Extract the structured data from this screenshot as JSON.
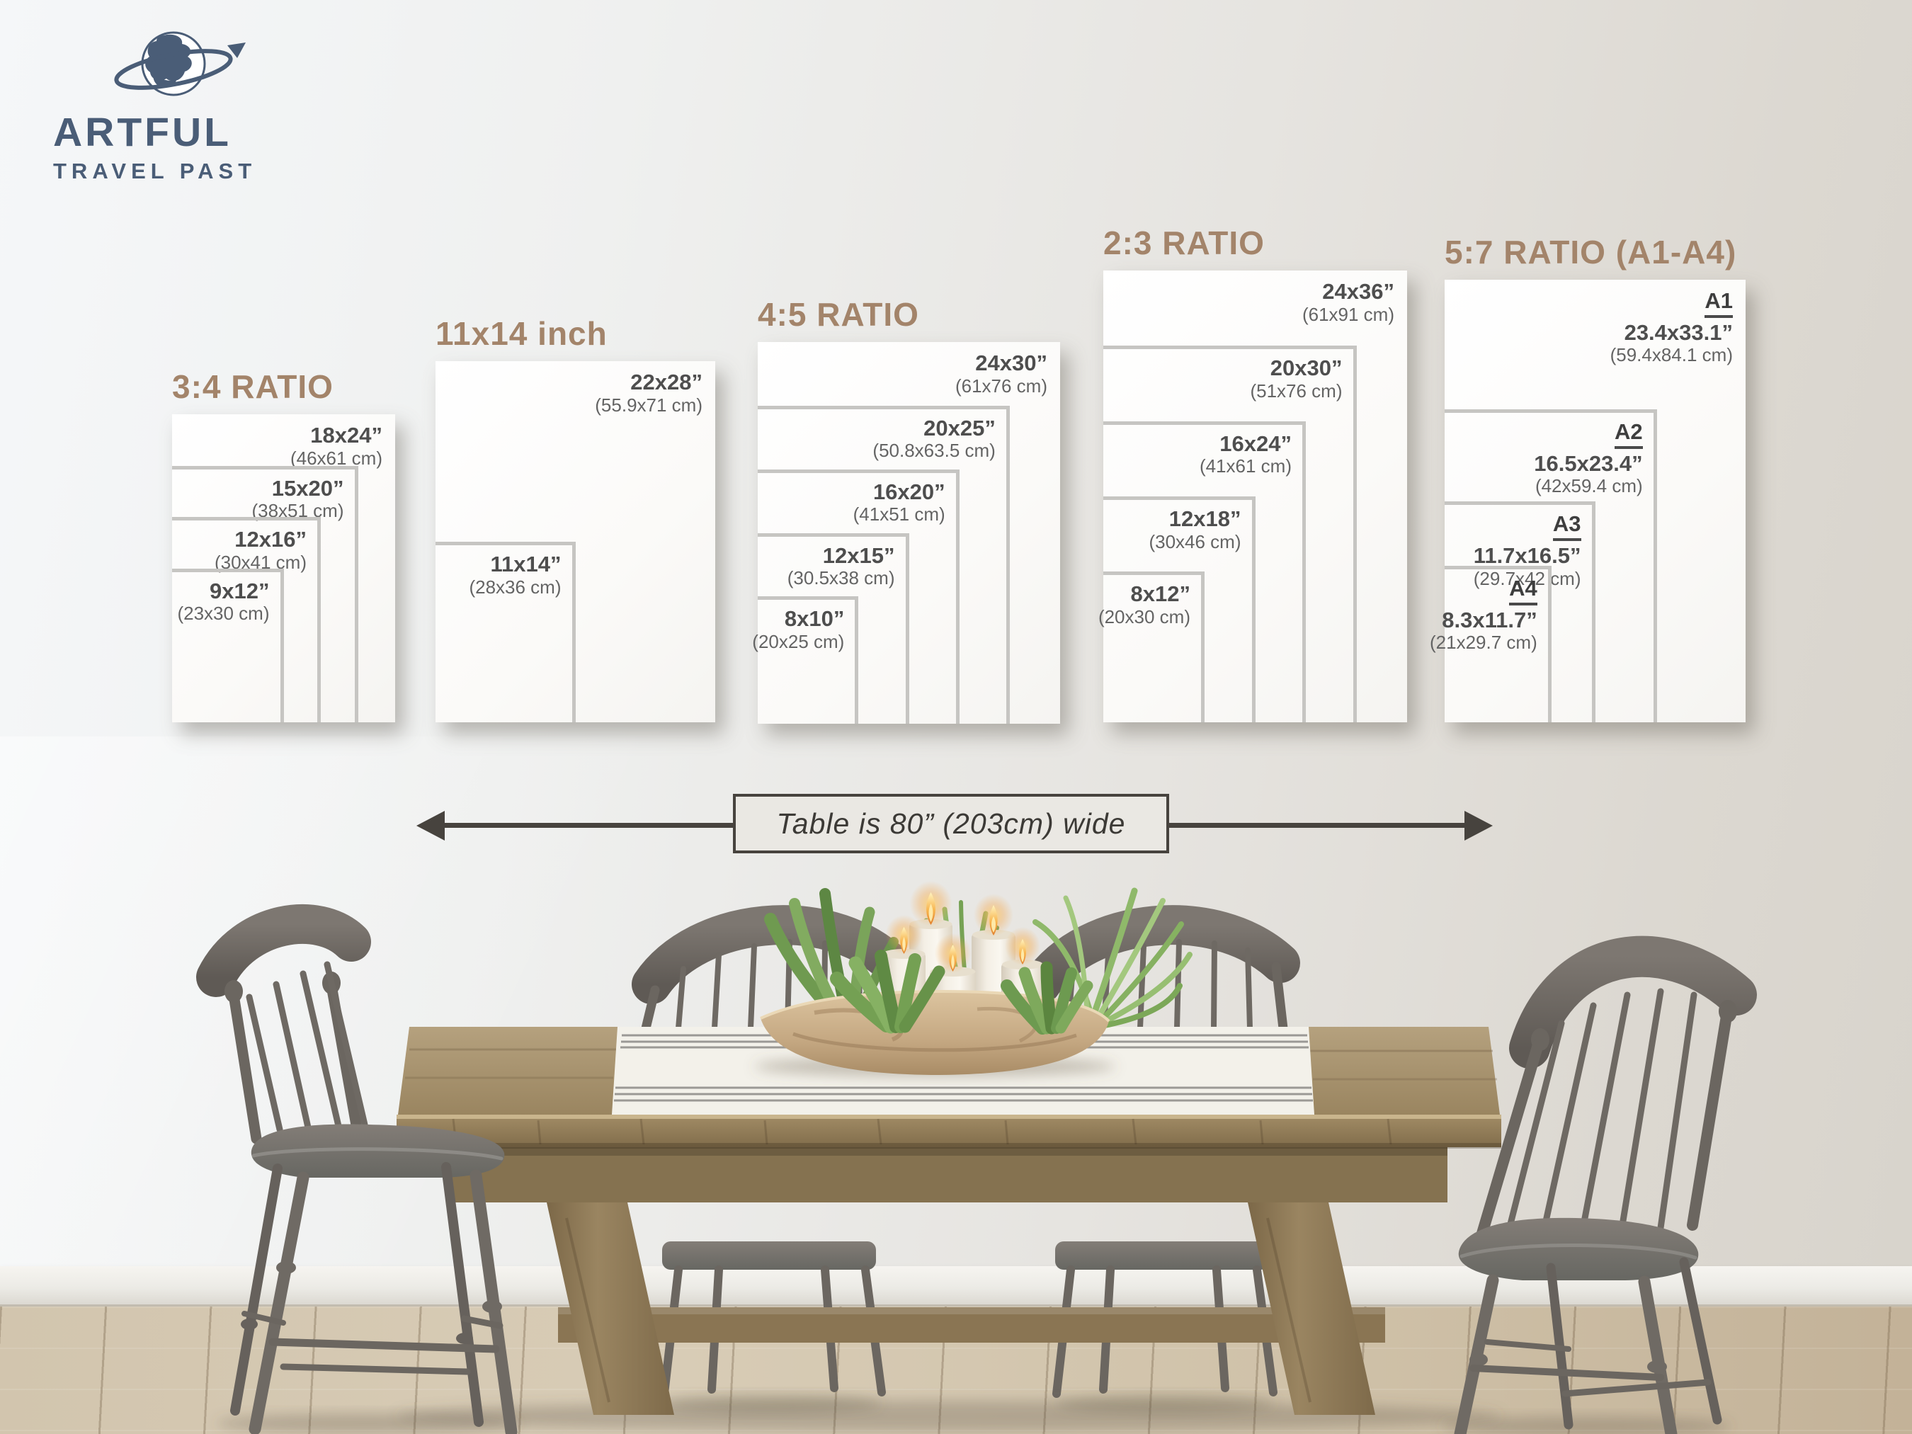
{
  "brand": {
    "line1": "ARTFUL",
    "line2": "TRAVEL PAST",
    "logo_icon": "globe-orbit-icon"
  },
  "panels": [
    {
      "title": "3:4 RATIO",
      "sizes": [
        {
          "inches": "18x24”",
          "cm": "(46x61 cm)",
          "w": 18,
          "h": 24
        },
        {
          "inches": "15x20”",
          "cm": "(38x51 cm)",
          "w": 15,
          "h": 20
        },
        {
          "inches": "12x16”",
          "cm": "(30x41 cm)",
          "w": 12,
          "h": 16
        },
        {
          "inches": "9x12”",
          "cm": "(23x30 cm)",
          "w": 9,
          "h": 12
        }
      ]
    },
    {
      "title": "11x14 inch",
      "sizes": [
        {
          "inches": "22x28”",
          "cm": "(55.9x71 cm)",
          "w": 22,
          "h": 28
        },
        {
          "inches": "11x14”",
          "cm": "(28x36 cm)",
          "w": 11,
          "h": 14
        }
      ]
    },
    {
      "title": "4:5 RATIO",
      "sizes": [
        {
          "inches": "24x30”",
          "cm": "(61x76 cm)",
          "w": 24,
          "h": 30
        },
        {
          "inches": "20x25”",
          "cm": "(50.8x63.5 cm)",
          "w": 20,
          "h": 25
        },
        {
          "inches": "16x20”",
          "cm": "(41x51 cm)",
          "w": 16,
          "h": 20
        },
        {
          "inches": "12x15”",
          "cm": "(30.5x38 cm)",
          "w": 12,
          "h": 15
        },
        {
          "inches": "8x10”",
          "cm": "(20x25 cm)",
          "w": 8,
          "h": 10
        }
      ]
    },
    {
      "title": "2:3 RATIO",
      "sizes": [
        {
          "inches": "24x36”",
          "cm": "(61x91 cm)",
          "w": 24,
          "h": 36
        },
        {
          "inches": "20x30”",
          "cm": "(51x76 cm)",
          "w": 20,
          "h": 30
        },
        {
          "inches": "16x24”",
          "cm": "(41x61 cm)",
          "w": 16,
          "h": 24
        },
        {
          "inches": "12x18”",
          "cm": "(30x46 cm)",
          "w": 12,
          "h": 18
        },
        {
          "inches": "8x12”",
          "cm": "(20x30 cm)",
          "w": 8,
          "h": 12
        }
      ]
    },
    {
      "title": "5:7 RATIO (A1-A4)",
      "sizes": [
        {
          "name": "A1",
          "inches": "23.4x33.1”",
          "cm": "(59.4x84.1 cm)",
          "w": 23.4,
          "h": 33.1
        },
        {
          "name": "A2",
          "inches": "16.5x23.4”",
          "cm": "(42x59.4 cm)",
          "w": 16.5,
          "h": 23.4
        },
        {
          "name": "A3",
          "inches": "11.7x16.5”",
          "cm": "(29.7x42 cm)",
          "w": 11.7,
          "h": 16.5
        },
        {
          "name": "A4",
          "inches": "8.3x11.7”",
          "cm": "(21x29.7 cm)",
          "w": 8.3,
          "h": 11.7
        }
      ]
    }
  ],
  "table_note": {
    "text": "Table is 80” (203cm) wide",
    "arrow_left_icon": "arrow-left-icon",
    "arrow_right_icon": "arrow-right-icon"
  },
  "colors": {
    "panel_title": "#a3846a",
    "logo_blue": "#4a5d77",
    "size_rect_border": "#c6c5c2",
    "arrow_dark": "#47433e",
    "size_text": "#4e4e4e",
    "cm_text": "#646464"
  }
}
